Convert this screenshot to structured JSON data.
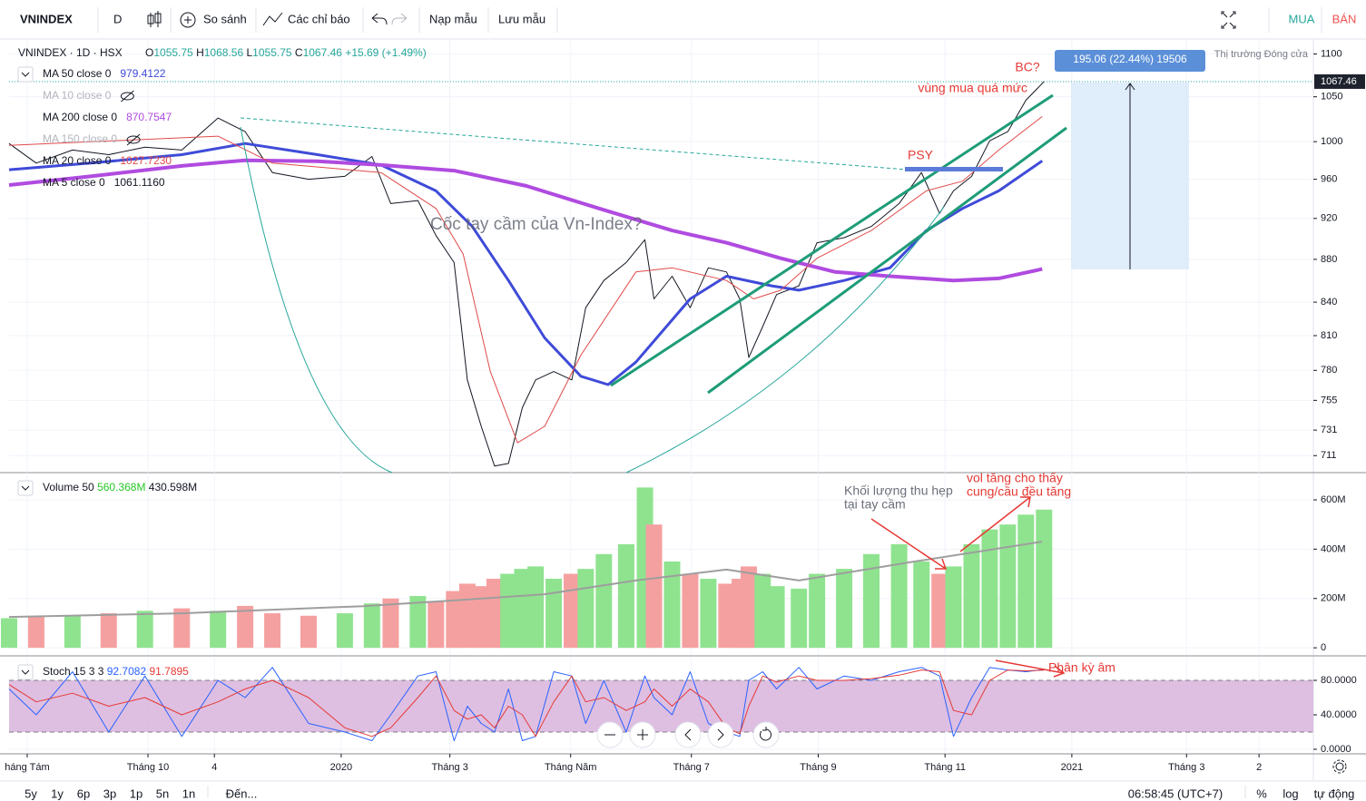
{
  "toolbar": {
    "symbol": "VNINDEX",
    "interval": "D",
    "compare": "So sánh",
    "indicators": "Các chỉ báo",
    "load": "Nạp mẫu",
    "save": "Lưu mẫu",
    "buy": "MUA",
    "sell": "BÁN"
  },
  "bottom_bar": {
    "ranges": [
      "5y",
      "1y",
      "6p",
      "3p",
      "1p",
      "5n",
      "1n"
    ],
    "goto": "Đến...",
    "time": "06:58:45 (UTC+7)",
    "percent": "%",
    "log": "log",
    "auto": "tự động"
  },
  "chart_data": [
    {
      "type": "line",
      "log": true,
      "grid": true,
      "header": {
        "symbol": "VNINDEX · 1D · HSX",
        "ohlc": [
          [
            "O",
            "1055.75"
          ],
          [
            "H",
            "1068.56"
          ],
          [
            "L",
            "1055.75"
          ],
          [
            "C",
            "1067.46"
          ]
        ],
        "change": "+15.69 (+1.49%)",
        "status": "Thị trường Đóng cửa"
      },
      "legend": [
        {
          "text": "MA 50 close 0",
          "value": "979.4122",
          "color": "#3f4bd8",
          "hidden": false
        },
        {
          "text": "MA 10 close 0",
          "hidden": true
        },
        {
          "text": "MA 200 close 0",
          "value": "870.7547",
          "color": "#b04be0",
          "hidden": false
        },
        {
          "text": "MA 150 close 0",
          "hidden": true
        },
        {
          "text": "MA 20 close 0",
          "value": "1027.7230",
          "color": "#e04a4a",
          "hidden": false
        },
        {
          "text": "MA 5 close 0",
          "value": "1061.1160",
          "color": "#131722",
          "hidden": false
        }
      ],
      "annotations": {
        "bc": "BC?",
        "overbought": "vùng mua quá mức",
        "psy": "PSY",
        "cup": "Cốc tay cầm của Vn-Index?",
        "measure": "195.06 (22.44%) 19506"
      },
      "ylim": [
        698,
        1118
      ],
      "yticks": [
        1100,
        1050,
        1000,
        960,
        920,
        880,
        840,
        810,
        780,
        755,
        731,
        711
      ],
      "series": [
        {
          "color": "#131722",
          "width": 1,
          "x": [
            -0.3,
            0.15,
            0.75,
            1.35,
            1.95,
            2.56,
            3.16,
            3.61,
            4.06,
            4.66,
            5.26,
            5.71,
            6.02,
            6.47,
            6.77,
            7.07,
            7.29,
            7.52,
            7.74,
            7.97,
            8.2,
            8.42,
            8.72,
            9.02,
            9.25,
            9.55,
            9.92,
            10.23,
            10.38,
            10.68,
            10.98,
            11.28,
            11.58,
            11.8,
            11.95,
            12.18,
            12.41,
            12.78,
            13.08,
            13.53,
            13.98,
            14.44,
            14.81,
            15.11,
            15.34,
            15.64,
            15.94,
            16.24,
            16.54,
            16.84
          ],
          "values": [
            998,
            977,
            991,
            986,
            994,
            991,
            1026,
            1011,
            967,
            960,
            963,
            984,
            935,
            938,
            903,
            877,
            772,
            734,
            703,
            705,
            749,
            772,
            779,
            772,
            835,
            860,
            877,
            899,
            843,
            864,
            835,
            872,
            868,
            843,
            791,
            818,
            847,
            855,
            896,
            901,
            912,
            935,
            967,
            925,
            948,
            963,
            1001,
            1011,
            1046,
            1067.46
          ]
        },
        {
          "color": "#3f4bd8",
          "width": 3,
          "x": [
            -0.3,
            1.05,
            2.56,
            3.61,
            4.81,
            5.86,
            6.77,
            7.37,
            7.97,
            8.57,
            9.17,
            9.62,
            10.08,
            10.98,
            11.58,
            12.33,
            12.78,
            13.53,
            14.29,
            14.89,
            15.49,
            16.09,
            16.81
          ],
          "values": [
            970,
            977,
            986,
            998,
            986,
            975,
            948,
            912,
            860,
            808,
            775,
            768,
            787,
            843,
            864,
            855,
            851,
            860,
            872,
            908,
            930,
            948,
            979.41
          ]
        },
        {
          "color": "#b04be0",
          "width": 4,
          "x": [
            -0.3,
            1.05,
            2.56,
            3.61,
            4.81,
            5.86,
            7.07,
            8.27,
            9.47,
            10.68,
            11.58,
            12.48,
            13.38,
            14.29,
            15.34,
            16.09,
            16.81
          ],
          "values": [
            954,
            963,
            974,
            980,
            979,
            975,
            969,
            953,
            930,
            908,
            896,
            881,
            868,
            864,
            860,
            862,
            870.75
          ]
        },
        {
          "color": "#e04a4a",
          "width": 1,
          "x": [
            -0.3,
            3.16,
            4.06,
            5.86,
            6.77,
            7.22,
            7.67,
            8.12,
            8.57,
            9.17,
            10.08,
            10.68,
            11.58,
            12.03,
            12.48,
            13.08,
            13.98,
            14.89,
            15.49,
            16.09,
            16.81
          ],
          "values": [
            996,
            1006,
            977,
            967,
            930,
            885,
            779,
            721,
            734,
            793,
            868,
            872,
            860,
            843,
            851,
            881,
            908,
            948,
            958,
            991,
            1027.72
          ]
        }
      ]
    },
    {
      "type": "bar",
      "grid": true,
      "legend": {
        "text": "Volume 50",
        "values": [
          "560.368M",
          "430.598M"
        ]
      },
      "annotations": {
        "narrow_1": "Khối lượng thu hẹp",
        "narrow_2": "tại tay cầm",
        "rise_1": "vol tăng cho thấy",
        "rise_2": "cung/cầu đều tăng"
      },
      "ylim": [
        -29,
        703
      ],
      "yticks": [
        {
          "value": 600,
          "label": "600M"
        },
        {
          "value": 400,
          "label": "400M"
        },
        {
          "value": 200,
          "label": "200M"
        },
        0
      ],
      "series": [
        {
          "up_color": "#8fe38f",
          "down_color": "#f5a0a0",
          "x": [
            -0.3,
            0.15,
            0.75,
            1.35,
            1.95,
            2.56,
            3.16,
            3.61,
            4.06,
            4.66,
            5.26,
            5.71,
            6.02,
            6.47,
            6.77,
            7.07,
            7.29,
            7.52,
            7.74,
            7.97,
            8.2,
            8.42,
            8.72,
            9.02,
            9.25,
            9.55,
            9.92,
            10.23,
            10.38,
            10.68,
            10.98,
            11.28,
            11.58,
            11.8,
            11.95,
            12.18,
            12.41,
            12.78,
            13.08,
            13.53,
            13.98,
            14.44,
            14.81,
            15.11,
            15.34,
            15.64,
            15.94,
            16.24,
            16.54,
            16.84
          ],
          "values": [
            120,
            125,
            130,
            140,
            150,
            160,
            150,
            170,
            140,
            130,
            140,
            180,
            200,
            210,
            190,
            230,
            260,
            250,
            280,
            300,
            320,
            330,
            280,
            300,
            320,
            380,
            420,
            650,
            500,
            350,
            300,
            280,
            260,
            280,
            330,
            300,
            250,
            240,
            300,
            320,
            380,
            420,
            350,
            300,
            330,
            420,
            480,
            500,
            540,
            560.368
          ]
        },
        {
          "type": "line",
          "color": "#9e9e9e",
          "width": 2,
          "x": [
            -0.3,
            2.56,
            5.56,
            7.07,
            8.57,
            10.08,
            11.58,
            12.78,
            14.59,
            16.81
          ],
          "values": [
            125,
            140,
            169,
            192,
            217,
            273,
            317,
            273,
            346,
            430.598
          ]
        }
      ]
    },
    {
      "type": "line",
      "grid": true,
      "legend": {
        "text": "Stoch 15 3 3",
        "values": [
          "92.7082",
          "91.7895"
        ]
      },
      "annotations": {
        "divergence": "Phân kỳ âm"
      },
      "band": [
        20,
        80
      ],
      "band_color": "#d8b4dc",
      "ylim": [
        -4.2,
        106.3
      ],
      "yticks": [
        {
          "value": 80,
          "label": "80.0000"
        },
        {
          "value": 40,
          "label": "40.0000"
        },
        {
          "value": 0,
          "label": "0.0000"
        }
      ],
      "xlim": [
        -0.3,
        21.3
      ],
      "xticks": [
        {
          "value": 0,
          "label": "háng Tám"
        },
        {
          "value": 2,
          "label": "Tháng 10"
        },
        {
          "value": 3.1,
          "label": "4"
        },
        {
          "value": 5.2,
          "label": "2020"
        },
        {
          "value": 7,
          "label": "Tháng 3"
        },
        {
          "value": 9,
          "label": "Tháng Năm"
        },
        {
          "value": 11,
          "label": "Tháng 7"
        },
        {
          "value": 13.1,
          "label": "Tháng 9"
        },
        {
          "value": 15.2,
          "label": "Tháng 11"
        },
        {
          "value": 17.3,
          "label": "2021"
        },
        {
          "value": 19.2,
          "label": "Tháng 3"
        },
        {
          "value": 20.4,
          "label": "2"
        }
      ],
      "series": [
        {
          "color": "#2962ff",
          "width": 1,
          "x": [
            -0.3,
            0.15,
            0.75,
            1.35,
            1.95,
            2.56,
            3.16,
            3.61,
            4.06,
            4.66,
            5.26,
            5.71,
            6.02,
            6.47,
            6.77,
            7.07,
            7.29,
            7.52,
            7.74,
            7.97,
            8.2,
            8.42,
            8.72,
            9.02,
            9.25,
            9.55,
            9.92,
            10.23,
            10.38,
            10.68,
            10.98,
            11.28,
            11.58,
            11.8,
            11.95,
            12.18,
            12.41,
            12.78,
            13.08,
            13.53,
            13.98,
            14.44,
            14.81,
            15.11,
            15.34,
            15.64,
            15.94,
            16.24,
            16.54,
            16.84
          ],
          "values": [
            70,
            40,
            90,
            20,
            85,
            15,
            80,
            60,
            95,
            30,
            20,
            10,
            40,
            85,
            90,
            10,
            50,
            30,
            20,
            70,
            10,
            15,
            90,
            85,
            30,
            80,
            20,
            85,
            60,
            40,
            90,
            30,
            20,
            15,
            80,
            90,
            70,
            95,
            70,
            85,
            80,
            90,
            95,
            85,
            15,
            60,
            95,
            92,
            90,
            92.7082
          ]
        },
        {
          "color": "#e53935",
          "width": 1,
          "x": [
            -0.3,
            0.15,
            0.75,
            1.35,
            1.95,
            2.56,
            3.16,
            3.61,
            4.06,
            4.66,
            5.26,
            5.71,
            6.02,
            6.47,
            6.77,
            7.07,
            7.29,
            7.52,
            7.74,
            7.97,
            8.2,
            8.42,
            8.72,
            9.02,
            9.25,
            9.55,
            9.92,
            10.23,
            10.38,
            10.68,
            10.98,
            11.28,
            11.58,
            11.8,
            11.95,
            12.18,
            12.41,
            12.78,
            13.08,
            13.53,
            13.98,
            14.44,
            14.81,
            15.11,
            15.34,
            15.64,
            15.94,
            16.24,
            16.54,
            16.84
          ],
          "values": [
            75,
            55,
            65,
            50,
            60,
            40,
            55,
            70,
            80,
            60,
            25,
            15,
            25,
            60,
            85,
            45,
            35,
            40,
            25,
            50,
            40,
            15,
            55,
            85,
            55,
            60,
            45,
            55,
            70,
            50,
            70,
            55,
            25,
            18,
            50,
            85,
            78,
            85,
            80,
            80,
            82,
            86,
            92,
            90,
            45,
            40,
            80,
            92,
            91,
            91.7895
          ]
        }
      ]
    }
  ]
}
